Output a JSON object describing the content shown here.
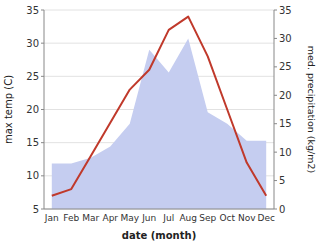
{
  "chart_data": {
    "type": "line",
    "categories": [
      "Jan",
      "Feb",
      "Mar",
      "Apr",
      "May",
      "Jun",
      "Jul",
      "Aug",
      "Sep",
      "Oct",
      "Nov",
      "Dec"
    ],
    "xlabel": "date (month)",
    "ylabel": "max temp (C)",
    "y2label": "med. precipitation (kg/m2)",
    "ylim": [
      5,
      35
    ],
    "yticks": [
      5,
      10,
      15,
      20,
      25,
      30,
      35
    ],
    "y2lim": [
      0,
      35
    ],
    "y2ticks": [
      0,
      5,
      10,
      15,
      20,
      25,
      30,
      35
    ],
    "grid": true,
    "series": [
      {
        "type": "area",
        "axis": "y2",
        "color": "#c5cdf0",
        "values": [
          8,
          8,
          9,
          11,
          15,
          28,
          24,
          30,
          17,
          15,
          12,
          12
        ]
      },
      {
        "type": "line",
        "color": "#c0392b",
        "values": [
          7,
          8,
          13,
          18,
          23,
          26,
          32,
          34,
          28,
          20,
          12,
          7
        ]
      }
    ]
  }
}
